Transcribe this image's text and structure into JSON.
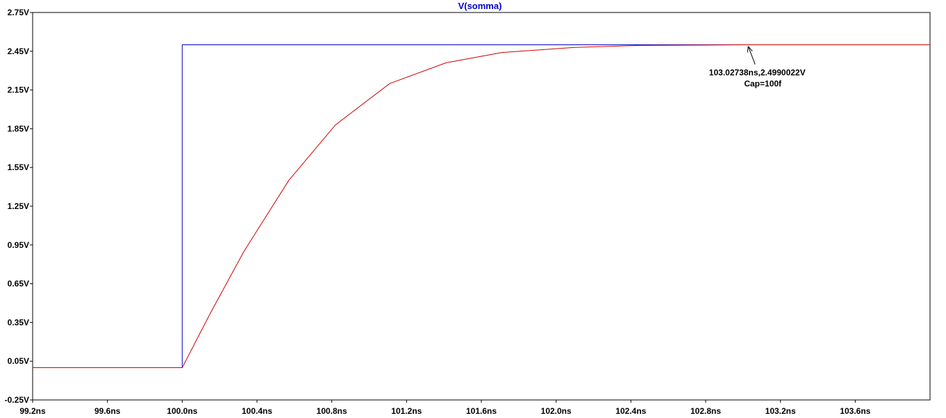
{
  "chart_data": {
    "type": "line",
    "title": "V(somma)",
    "title_color": "#0000cc",
    "xlim": [
      99.2,
      104.0
    ],
    "ylim": [
      -0.25,
      2.75
    ],
    "grid": false,
    "x_ticks": [
      99.2,
      99.6,
      100.0,
      100.4,
      100.8,
      101.2,
      101.6,
      102.0,
      102.4,
      102.8,
      103.2,
      103.6
    ],
    "x_tick_labels": [
      "99.2ns",
      "99.6ns",
      "100.0ns",
      "100.4ns",
      "100.8ns",
      "101.2ns",
      "101.6ns",
      "102.0ns",
      "102.4ns",
      "102.8ns",
      "103.2ns",
      "103.6ns"
    ],
    "y_ticks": [
      2.75,
      2.45,
      2.15,
      1.85,
      1.55,
      1.25,
      0.95,
      0.65,
      0.35,
      0.05,
      -0.25
    ],
    "y_tick_labels": [
      "2.75V",
      "2.45V",
      "2.15V",
      "1.85V",
      "1.55V",
      "1.25V",
      "0.95V",
      "0.65V",
      "0.35V",
      "0.05V",
      "-0.25V"
    ],
    "series": [
      {
        "color": "#0000cc",
        "x": [
          99.2,
          100.0,
          100.0,
          104.0
        ],
        "y": [
          0.0,
          0.0,
          2.5,
          2.5
        ]
      },
      {
        "color": "#cc0000",
        "x": [
          99.2,
          100.0,
          100.15,
          100.33,
          100.57,
          100.82,
          101.11,
          101.41,
          101.71,
          102.1,
          102.45,
          103.0,
          104.0
        ],
        "y": [
          0.0,
          0.0,
          0.42,
          0.9,
          1.45,
          1.88,
          2.2,
          2.36,
          2.44,
          2.48,
          2.495,
          2.5,
          2.5
        ]
      }
    ],
    "annotation": {
      "x": 103.02738,
      "y": 2.4990022,
      "line1": "103.02738ns,2.4990022V",
      "line2": "Cap=100f"
    }
  }
}
